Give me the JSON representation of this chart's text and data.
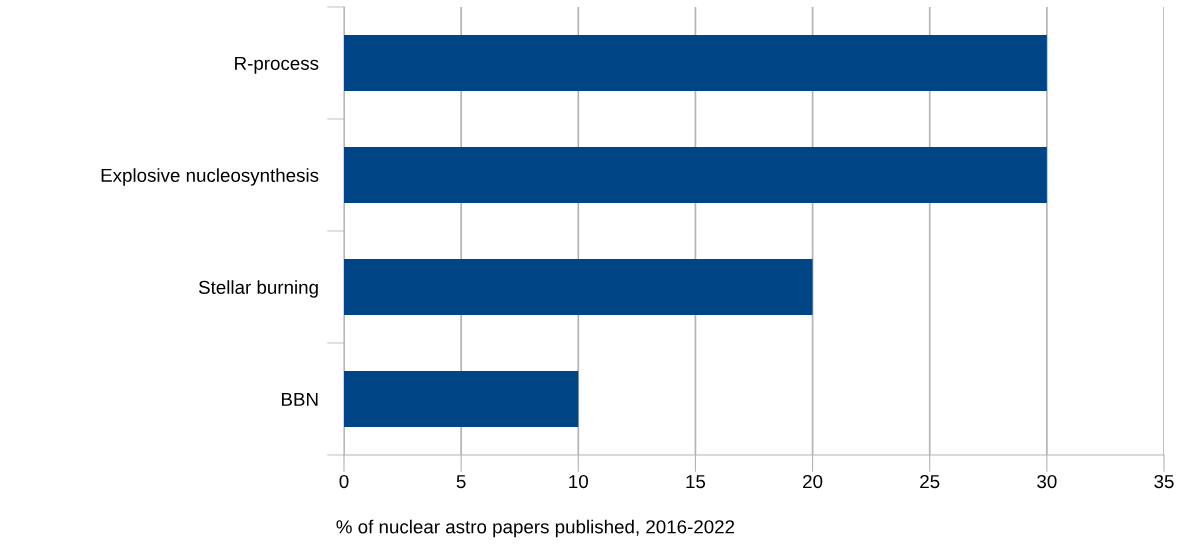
{
  "chart_data": {
    "type": "bar",
    "orientation": "horizontal",
    "categories": [
      "R-process",
      "Explosive nucleosynthesis",
      "Stellar burning",
      "BBN"
    ],
    "values": [
      30,
      30,
      20,
      10
    ],
    "color": "#004586",
    "xlabel": "% of nuclear astro papers published, 2016-2022",
    "xlim": [
      0,
      35
    ],
    "xticks": [
      0,
      5,
      10,
      15,
      20,
      25,
      30,
      35
    ],
    "grid": "x",
    "legend": false
  }
}
